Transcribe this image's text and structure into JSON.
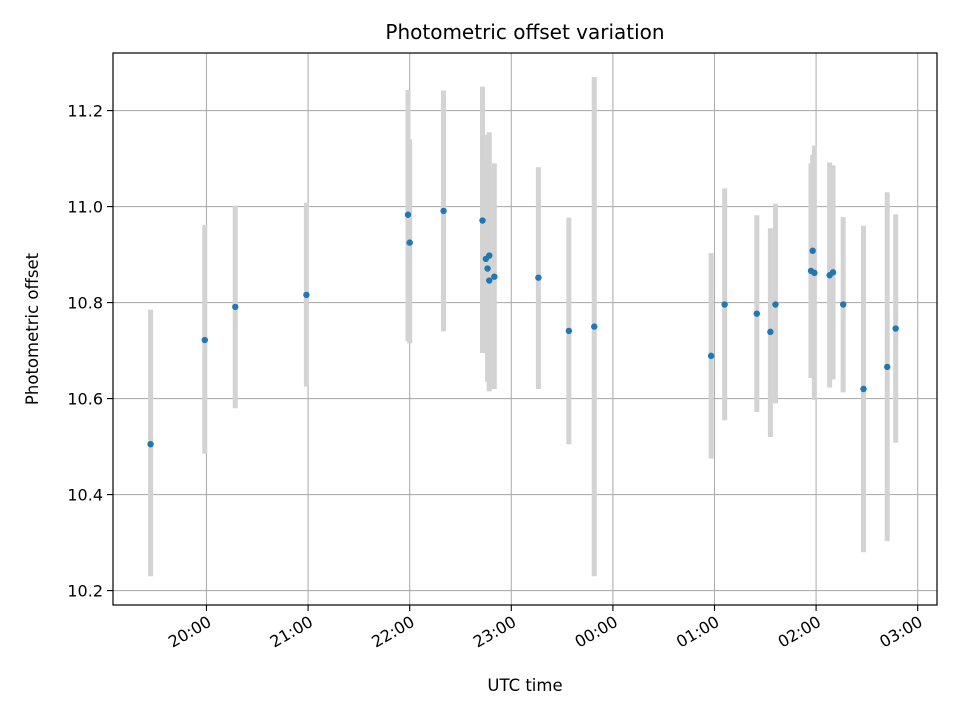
{
  "chart_data": {
    "type": "scatter",
    "title": "Photometric offset variation",
    "xlabel": "UTC time",
    "ylabel": "Photometric offset",
    "x_tick_labels": [
      "20:00",
      "21:00",
      "22:00",
      "23:00",
      "00:00",
      "01:00",
      "02:00",
      "03:00"
    ],
    "y_tick_labels": [
      "10.2",
      "10.4",
      "10.6",
      "10.8",
      "11.0",
      "11.2"
    ],
    "ylim": [
      10.17,
      11.32
    ],
    "xlim_hours": [
      19.08,
      27.19
    ],
    "grid": true,
    "colors": {
      "point": "#1f77b4",
      "errorbar": "#d3d3d3",
      "grid": "#b0b0b0"
    },
    "points": [
      {
        "time": "19:27",
        "value": 10.505,
        "low": 10.23,
        "high": 10.785
      },
      {
        "time": "19:59",
        "value": 10.722,
        "low": 10.485,
        "high": 10.962
      },
      {
        "time": "20:17",
        "value": 10.791,
        "low": 10.58,
        "high": 11.002
      },
      {
        "time": "20:59",
        "value": 10.816,
        "low": 10.625,
        "high": 11.008
      },
      {
        "time": "21:59",
        "value": 10.983,
        "low": 10.72,
        "high": 11.243
      },
      {
        "time": "22:00",
        "value": 10.925,
        "low": 10.715,
        "high": 11.14
      },
      {
        "time": "22:20",
        "value": 10.991,
        "low": 10.74,
        "high": 11.242
      },
      {
        "time": "22:43",
        "value": 10.971,
        "low": 10.695,
        "high": 11.25
      },
      {
        "time": "22:45",
        "value": 10.891,
        "low": 10.695,
        "high": 11.09
      },
      {
        "time": "22:46",
        "value": 10.871,
        "low": 10.635,
        "high": 11.15
      },
      {
        "time": "22:47",
        "value": 10.898,
        "low": 10.62,
        "high": 11.155
      },
      {
        "time": "22:47",
        "value": 10.846,
        "low": 10.615,
        "high": 11.08
      },
      {
        "time": "22:50",
        "value": 10.854,
        "low": 10.62,
        "high": 11.09
      },
      {
        "time": "23:16",
        "value": 10.852,
        "low": 10.62,
        "high": 11.082
      },
      {
        "time": "23:34",
        "value": 10.741,
        "low": 10.505,
        "high": 10.977
      },
      {
        "time": "23:49",
        "value": 10.75,
        "low": 10.23,
        "high": 11.27
      },
      {
        "time": "00:58",
        "value": 10.689,
        "low": 10.475,
        "high": 10.903
      },
      {
        "time": "01:06",
        "value": 10.796,
        "low": 10.555,
        "high": 11.038
      },
      {
        "time": "01:25",
        "value": 10.777,
        "low": 10.572,
        "high": 10.982
      },
      {
        "time": "01:33",
        "value": 10.739,
        "low": 10.52,
        "high": 10.955
      },
      {
        "time": "01:36",
        "value": 10.796,
        "low": 10.59,
        "high": 11.006
      },
      {
        "time": "01:57",
        "value": 10.866,
        "low": 10.643,
        "high": 11.09
      },
      {
        "time": "01:58",
        "value": 10.908,
        "low": 10.71,
        "high": 11.108
      },
      {
        "time": "01:59",
        "value": 10.862,
        "low": 10.597,
        "high": 11.127
      },
      {
        "time": "02:08",
        "value": 10.857,
        "low": 10.623,
        "high": 11.092
      },
      {
        "time": "02:10",
        "value": 10.863,
        "low": 10.64,
        "high": 11.086
      },
      {
        "time": "02:16",
        "value": 10.796,
        "low": 10.613,
        "high": 10.978
      },
      {
        "time": "02:28",
        "value": 10.62,
        "low": 10.28,
        "high": 10.96
      },
      {
        "time": "02:42",
        "value": 10.666,
        "low": 10.303,
        "high": 11.03
      },
      {
        "time": "02:47",
        "value": 10.746,
        "low": 10.508,
        "high": 10.984
      }
    ]
  }
}
